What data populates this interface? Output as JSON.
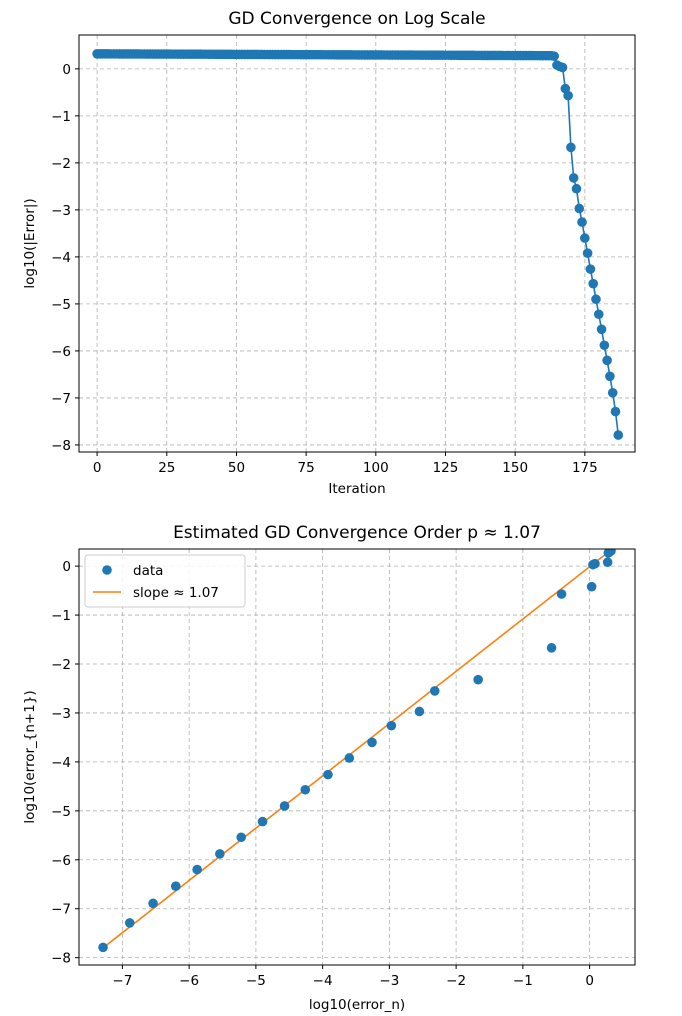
{
  "chart_data": [
    {
      "type": "line",
      "title": "GD Convergence on Log Scale",
      "xlabel": "Iteration",
      "ylabel": "log10(|Error|)",
      "xlim": [
        -6.5,
        193
      ],
      "ylim": [
        -8.15,
        0.72
      ],
      "xticks": [
        0,
        25,
        50,
        75,
        100,
        125,
        150,
        175
      ],
      "yticks": [
        0,
        -1,
        -2,
        -3,
        -4,
        -5,
        -6,
        -7,
        -8
      ],
      "grid": true,
      "marker": "o",
      "color": "#1f77b4",
      "series": [
        {
          "plateau": {
            "x_start": 0,
            "x_end": 163,
            "values_start": 0.32,
            "values_end": 0.28
          },
          "tail": {
            "x": [
              164,
              165,
              166,
              167,
              168,
              169,
              170,
              171,
              172,
              173,
              174,
              175,
              176,
              177,
              178,
              179,
              180,
              181,
              182,
              183,
              184,
              185,
              186,
              187
            ],
            "y": [
              0.27,
              0.08,
              0.05,
              0.03,
              -0.42,
              -0.57,
              -1.67,
              -2.32,
              -2.55,
              -2.97,
              -3.26,
              -3.6,
              -3.92,
              -4.26,
              -4.57,
              -4.9,
              -5.22,
              -5.54,
              -5.88,
              -6.2,
              -6.54,
              -6.89,
              -7.29,
              -7.79
            ]
          }
        }
      ]
    },
    {
      "type": "scatter",
      "title": "Estimated GD Convergence Order p ≈ 1.07",
      "xlabel": "log10(error_n)",
      "ylabel": "log10(error_{n+1})",
      "xlim": [
        -7.65,
        0.68
      ],
      "ylim": [
        -8.15,
        0.35
      ],
      "xticks": [
        -7,
        -6,
        -5,
        -4,
        -3,
        -2,
        -1,
        0
      ],
      "yticks": [
        0,
        -1,
        -2,
        -3,
        -4,
        -5,
        -6,
        -7,
        -8
      ],
      "grid": true,
      "legend_position": "top-left",
      "series": [
        {
          "name": "data",
          "kind": "scatter",
          "color": "#1f77b4",
          "x": [
            0.32,
            0.3,
            0.28,
            0.27,
            0.08,
            0.05,
            0.03,
            -0.42,
            -0.57,
            -1.67,
            -2.32,
            -2.55,
            -2.97,
            -3.26,
            -3.6,
            -3.92,
            -4.26,
            -4.57,
            -4.9,
            -5.22,
            -5.54,
            -5.88,
            -6.2,
            -6.54,
            -6.89,
            -7.29
          ],
          "y": [
            0.31,
            0.29,
            0.27,
            0.08,
            0.05,
            0.03,
            -0.42,
            -0.57,
            -1.67,
            -2.32,
            -2.55,
            -2.97,
            -3.26,
            -3.6,
            -3.92,
            -4.26,
            -4.57,
            -4.9,
            -5.22,
            -5.54,
            -5.88,
            -6.2,
            -6.54,
            -6.89,
            -7.29,
            -7.79
          ]
        },
        {
          "name": "slope ≈ 1.07",
          "kind": "line",
          "color": "#ff7f0e",
          "x": [
            -7.29,
            0.32
          ],
          "y": [
            -7.8,
            0.33
          ]
        }
      ]
    }
  ]
}
